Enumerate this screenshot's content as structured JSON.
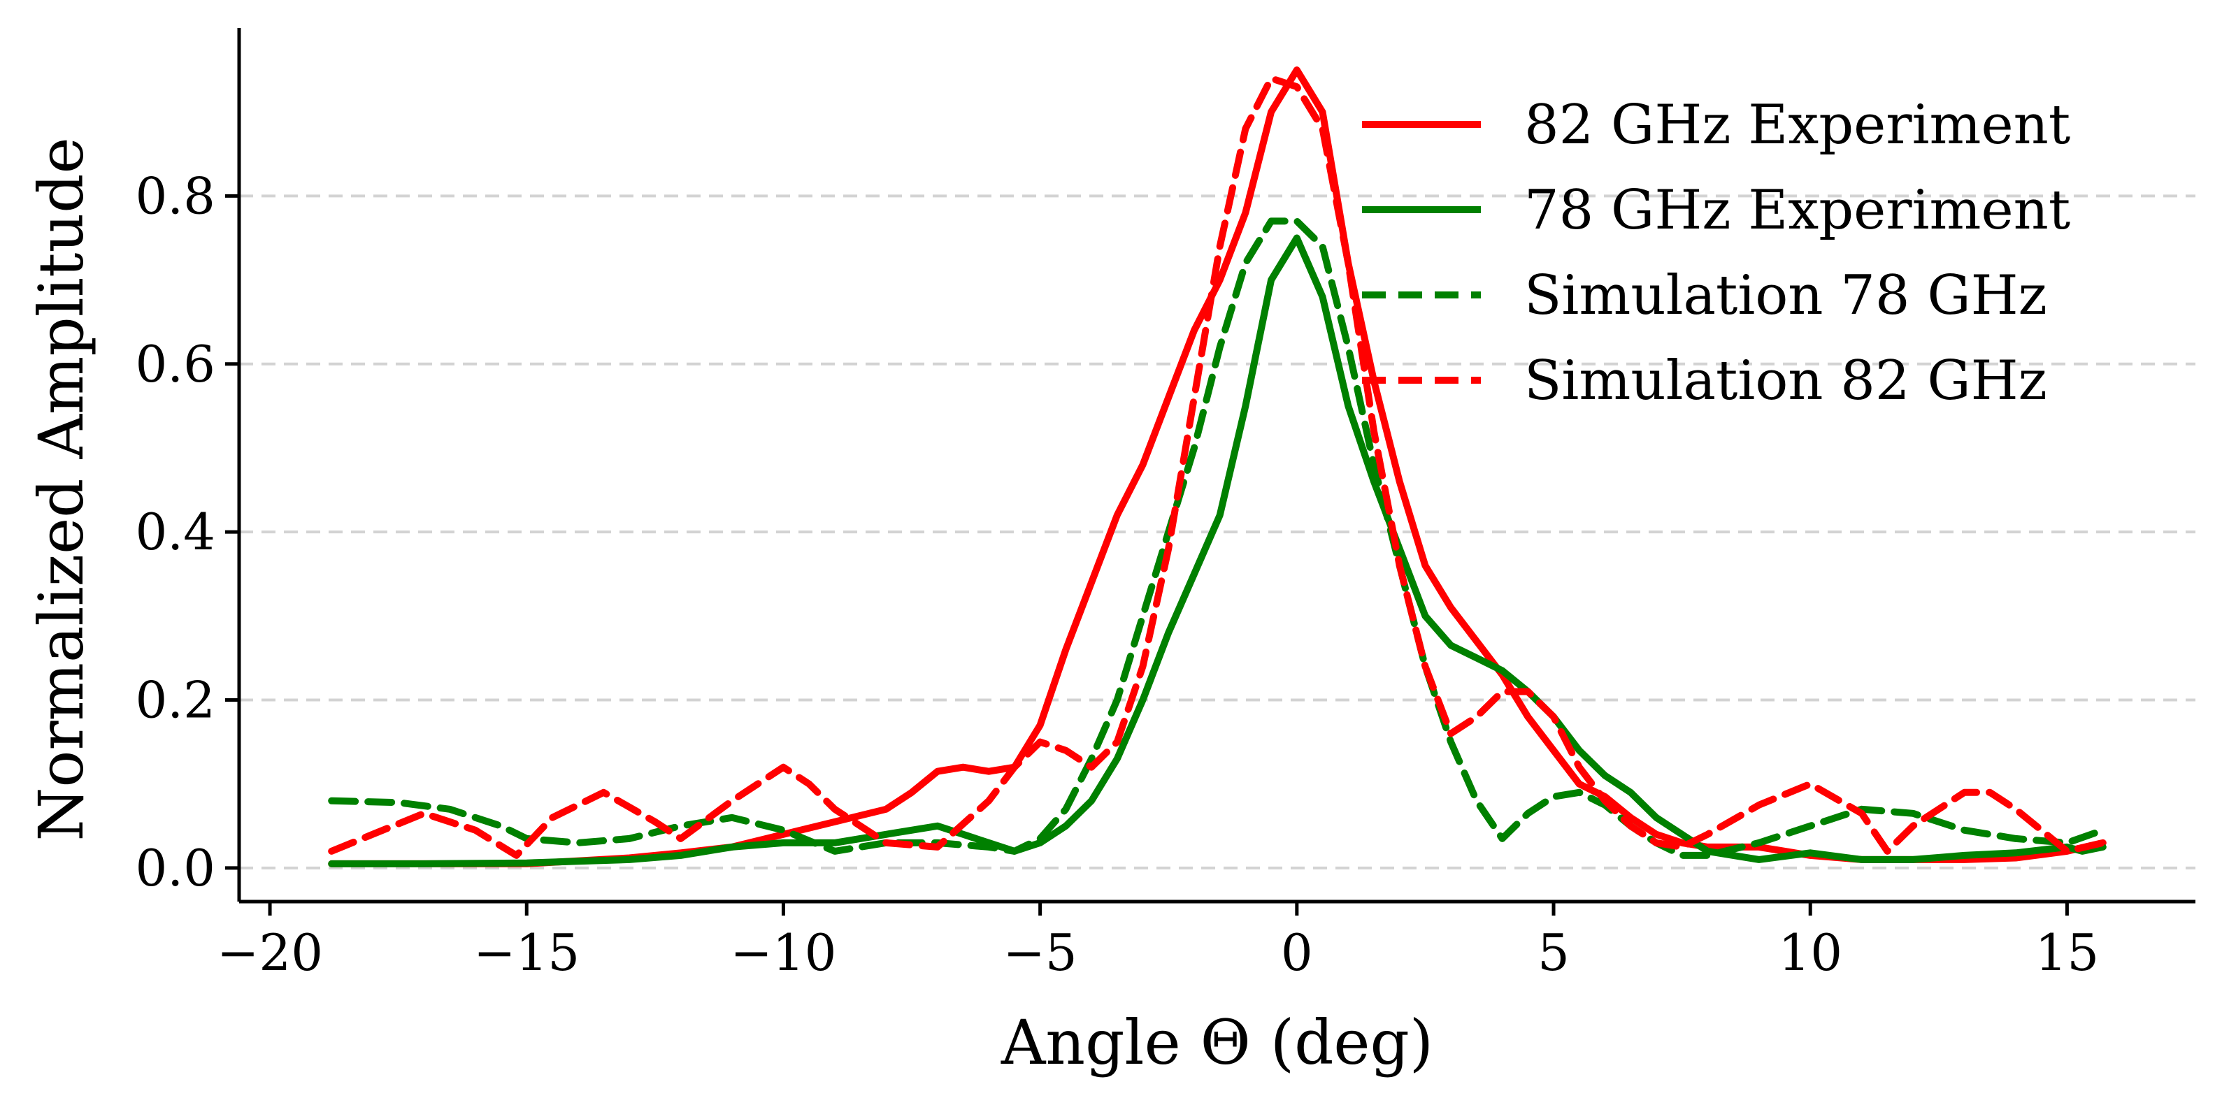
{
  "chart_data": {
    "type": "line",
    "title": "",
    "xlabel": "Angle Θ (deg)",
    "ylabel": "Normalized Amplitude",
    "xlim": [
      -20.6,
      17.5
    ],
    "ylim": [
      -0.04,
      1.0
    ],
    "xticks": [
      -20,
      -15,
      -10,
      -5,
      0,
      5,
      10,
      15
    ],
    "xtick_labels": [
      "−20",
      "−15",
      "−10",
      "−5",
      "0",
      "5",
      "10",
      "15"
    ],
    "yticks": [
      0.0,
      0.2,
      0.4,
      0.6,
      0.8
    ],
    "ytick_labels": [
      "0.0",
      "0.2",
      "0.4",
      "0.6",
      "0.8"
    ],
    "grid": "horizontal dashed",
    "legend_position": "top-right",
    "series": [
      {
        "name": "82 GHz Experiment",
        "color": "#ff0000",
        "style": "solid",
        "x": [
          -18.8,
          -17,
          -15,
          -13,
          -12,
          -11,
          -10,
          -9,
          -8,
          -7.5,
          -7,
          -6.5,
          -6,
          -5.5,
          -5,
          -4.5,
          -4,
          -3.5,
          -3,
          -2.5,
          -2,
          -1.5,
          -1,
          -0.5,
          0,
          0.5,
          1,
          1.5,
          2,
          2.5,
          3,
          3.5,
          4,
          4.5,
          5,
          5.5,
          6,
          6.5,
          7,
          7.5,
          8,
          9,
          10,
          11,
          12,
          13,
          14,
          15,
          15.7
        ],
        "y": [
          0.005,
          0.005,
          0.005,
          0.012,
          0.018,
          0.025,
          0.04,
          0.055,
          0.07,
          0.09,
          0.115,
          0.12,
          0.115,
          0.12,
          0.17,
          0.26,
          0.34,
          0.42,
          0.48,
          0.56,
          0.64,
          0.7,
          0.78,
          0.9,
          0.95,
          0.9,
          0.72,
          0.58,
          0.46,
          0.36,
          0.31,
          0.27,
          0.23,
          0.18,
          0.14,
          0.1,
          0.085,
          0.06,
          0.04,
          0.03,
          0.025,
          0.025,
          0.015,
          0.01,
          0.01,
          0.01,
          0.012,
          0.02,
          0.03
        ]
      },
      {
        "name": "78 GHz Experiment",
        "color": "#008000",
        "style": "solid",
        "x": [
          -18.8,
          -17,
          -15,
          -13,
          -12,
          -11,
          -10,
          -9,
          -8,
          -7,
          -6.5,
          -6,
          -5.5,
          -5,
          -4.5,
          -4,
          -3.5,
          -3,
          -2.5,
          -2,
          -1.5,
          -1,
          -0.5,
          0,
          0.5,
          1,
          1.5,
          2,
          2.5,
          3,
          3.5,
          4,
          4.5,
          5,
          5.5,
          6,
          6.5,
          7,
          7.5,
          8,
          9,
          10,
          11,
          12,
          13,
          14,
          15,
          15.3,
          15.7
        ],
        "y": [
          0.005,
          0.005,
          0.006,
          0.01,
          0.015,
          0.025,
          0.03,
          0.03,
          0.04,
          0.05,
          0.04,
          0.03,
          0.02,
          0.03,
          0.05,
          0.08,
          0.13,
          0.2,
          0.28,
          0.35,
          0.42,
          0.55,
          0.7,
          0.75,
          0.68,
          0.55,
          0.46,
          0.38,
          0.3,
          0.265,
          0.25,
          0.235,
          0.21,
          0.18,
          0.14,
          0.11,
          0.09,
          0.06,
          0.04,
          0.02,
          0.01,
          0.018,
          0.01,
          0.01,
          0.015,
          0.018,
          0.025,
          0.02,
          0.025
        ]
      },
      {
        "name": "Simulation 78 GHz",
        "color": "#008000",
        "style": "dashed",
        "x": [
          -18.8,
          -17.5,
          -16.5,
          -15.5,
          -15,
          -14,
          -13,
          -12,
          -11,
          -10,
          -9,
          -8,
          -7,
          -6,
          -5.5,
          -5,
          -4.5,
          -4,
          -3.5,
          -3,
          -2.5,
          -2,
          -1.5,
          -1,
          -0.5,
          0,
          0.5,
          1,
          1.5,
          2,
          2.5,
          3,
          3.5,
          4,
          4.5,
          5,
          5.5,
          6,
          6.5,
          7,
          7.5,
          8,
          9,
          10,
          11,
          12,
          13,
          14,
          15,
          15.7
        ],
        "y": [
          0.08,
          0.078,
          0.07,
          0.05,
          0.035,
          0.03,
          0.035,
          0.05,
          0.06,
          0.045,
          0.02,
          0.03,
          0.03,
          0.025,
          0.02,
          0.035,
          0.07,
          0.13,
          0.2,
          0.3,
          0.4,
          0.5,
          0.62,
          0.72,
          0.77,
          0.77,
          0.74,
          0.62,
          0.48,
          0.36,
          0.24,
          0.15,
          0.08,
          0.035,
          0.065,
          0.085,
          0.09,
          0.075,
          0.05,
          0.03,
          0.015,
          0.015,
          0.03,
          0.05,
          0.07,
          0.065,
          0.045,
          0.035,
          0.03,
          0.045
        ]
      },
      {
        "name": "Simulation 82 GHz",
        "color": "#ff0000",
        "style": "dashed",
        "x": [
          -18.8,
          -18,
          -17,
          -16,
          -15.2,
          -14.5,
          -13.5,
          -12.5,
          -12,
          -11,
          -10,
          -9.5,
          -9,
          -8,
          -7,
          -6,
          -5.5,
          -5,
          -4.5,
          -4,
          -3.5,
          -3,
          -2.5,
          -2,
          -1.5,
          -1,
          -0.5,
          0,
          0.5,
          1,
          1.5,
          2,
          2.5,
          3,
          3.5,
          4,
          4.5,
          5,
          5.5,
          6,
          6.5,
          7,
          7.5,
          8,
          9,
          10,
          11,
          11.5,
          12,
          13,
          13.5,
          14,
          15,
          15.7
        ],
        "y": [
          0.02,
          0.04,
          0.065,
          0.045,
          0.015,
          0.06,
          0.09,
          0.055,
          0.035,
          0.08,
          0.12,
          0.1,
          0.07,
          0.03,
          0.025,
          0.08,
          0.12,
          0.15,
          0.14,
          0.12,
          0.15,
          0.24,
          0.38,
          0.56,
          0.74,
          0.88,
          0.94,
          0.93,
          0.88,
          0.72,
          0.52,
          0.36,
          0.24,
          0.16,
          0.18,
          0.21,
          0.21,
          0.18,
          0.12,
          0.08,
          0.05,
          0.03,
          0.025,
          0.04,
          0.075,
          0.1,
          0.065,
          0.02,
          0.05,
          0.09,
          0.09,
          0.07,
          0.02,
          0.03
        ]
      }
    ]
  }
}
